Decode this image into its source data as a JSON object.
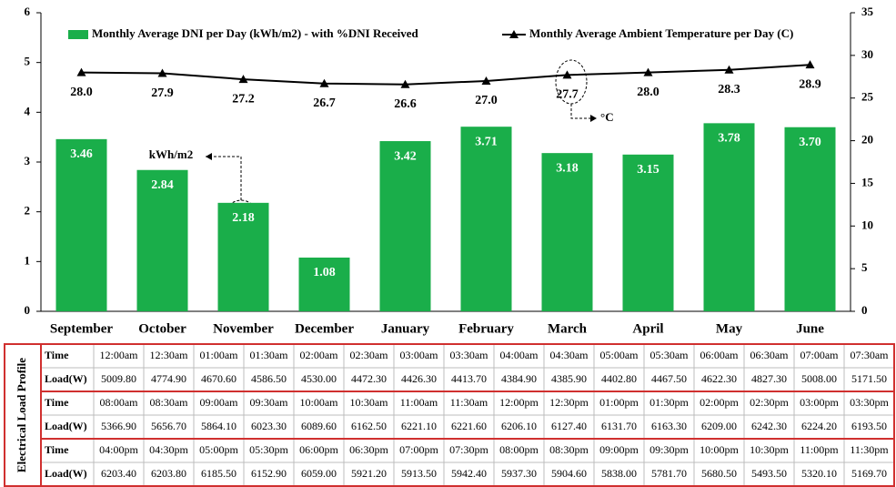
{
  "chart_data": {
    "type": "bar",
    "categories": [
      "September",
      "October",
      "November",
      "December",
      "January",
      "February",
      "March",
      "April",
      "May",
      "June"
    ],
    "series": [
      {
        "name": "Monthly Average DNI per Day (kWh/m2) - with %DNI Received",
        "type": "bar",
        "color": "#1aae4a",
        "values": [
          3.46,
          2.84,
          2.18,
          1.08,
          3.42,
          3.71,
          3.18,
          3.15,
          3.78,
          3.7
        ],
        "value_labels": [
          "3.46",
          "2.84",
          "2.18",
          "1.08",
          "3.42",
          "3.71",
          "3.18",
          "3.15",
          "3.78",
          "3.70"
        ]
      },
      {
        "name": "Monthly Average Ambient Temperature per Day (C)",
        "type": "line",
        "axis": "y2",
        "color": "#000000",
        "values": [
          28.0,
          27.9,
          27.2,
          26.7,
          26.6,
          27.0,
          27.7,
          28.0,
          28.3,
          28.9
        ],
        "value_labels": [
          "28.0",
          "27.9",
          "27.2",
          "26.7",
          "26.6",
          "27.0",
          "27.7",
          "28.0",
          "28.3",
          "28.9"
        ]
      }
    ],
    "ylim": [
      0,
      6
    ],
    "yticks": [
      0,
      1,
      2,
      3,
      4,
      5,
      6
    ],
    "y2lim": [
      0,
      35
    ],
    "y2ticks": [
      0,
      5,
      10,
      15,
      20,
      25,
      30,
      35
    ],
    "annotations": [
      "kWh/m2",
      "°C"
    ]
  },
  "table": {
    "side_label": "Electrical Load Profile",
    "rows": [
      [
        "Time",
        "12:00am",
        "12:30am",
        "01:00am",
        "01:30am",
        "02:00am",
        "02:30am",
        "03:00am",
        "03:30am",
        "04:00am",
        "04:30am",
        "05:00am",
        "05:30am",
        "06:00am",
        "06:30am",
        "07:00am",
        "07:30am"
      ],
      [
        "Load(W)",
        "5009.80",
        "4774.90",
        "4670.60",
        "4586.50",
        "4530.00",
        "4472.30",
        "4426.30",
        "4413.70",
        "4384.90",
        "4385.90",
        "4402.80",
        "4467.50",
        "4622.30",
        "4827.30",
        "5008.00",
        "5171.50"
      ],
      [
        "Time",
        "08:00am",
        "08:30am",
        "09:00am",
        "09:30am",
        "10:00am",
        "10:30am",
        "11:00am",
        "11:30am",
        "12:00pm",
        "12:30pm",
        "01:00pm",
        "01:30pm",
        "02:00pm",
        "02:30pm",
        "03:00pm",
        "03:30pm"
      ],
      [
        "Load(W)",
        "5366.90",
        "5656.70",
        "5864.10",
        "6023.30",
        "6089.60",
        "6162.50",
        "6221.10",
        "6221.60",
        "6206.10",
        "6127.40",
        "6131.70",
        "6163.30",
        "6209.00",
        "6242.30",
        "6224.20",
        "6193.50"
      ],
      [
        "Time",
        "04:00pm",
        "04:30pm",
        "05:00pm",
        "05:30pm",
        "06:00pm",
        "06:30pm",
        "07:00pm",
        "07:30pm",
        "08:00pm",
        "08:30pm",
        "09:00pm",
        "09:30pm",
        "10:00pm",
        "10:30pm",
        "11:00pm",
        "11:30pm"
      ],
      [
        "Load(W)",
        "6203.40",
        "6203.80",
        "6185.50",
        "6152.90",
        "6059.00",
        "5921.20",
        "5913.50",
        "5942.40",
        "5937.30",
        "5904.60",
        "5838.00",
        "5781.70",
        "5680.50",
        "5493.50",
        "5320.10",
        "5169.70"
      ]
    ]
  }
}
